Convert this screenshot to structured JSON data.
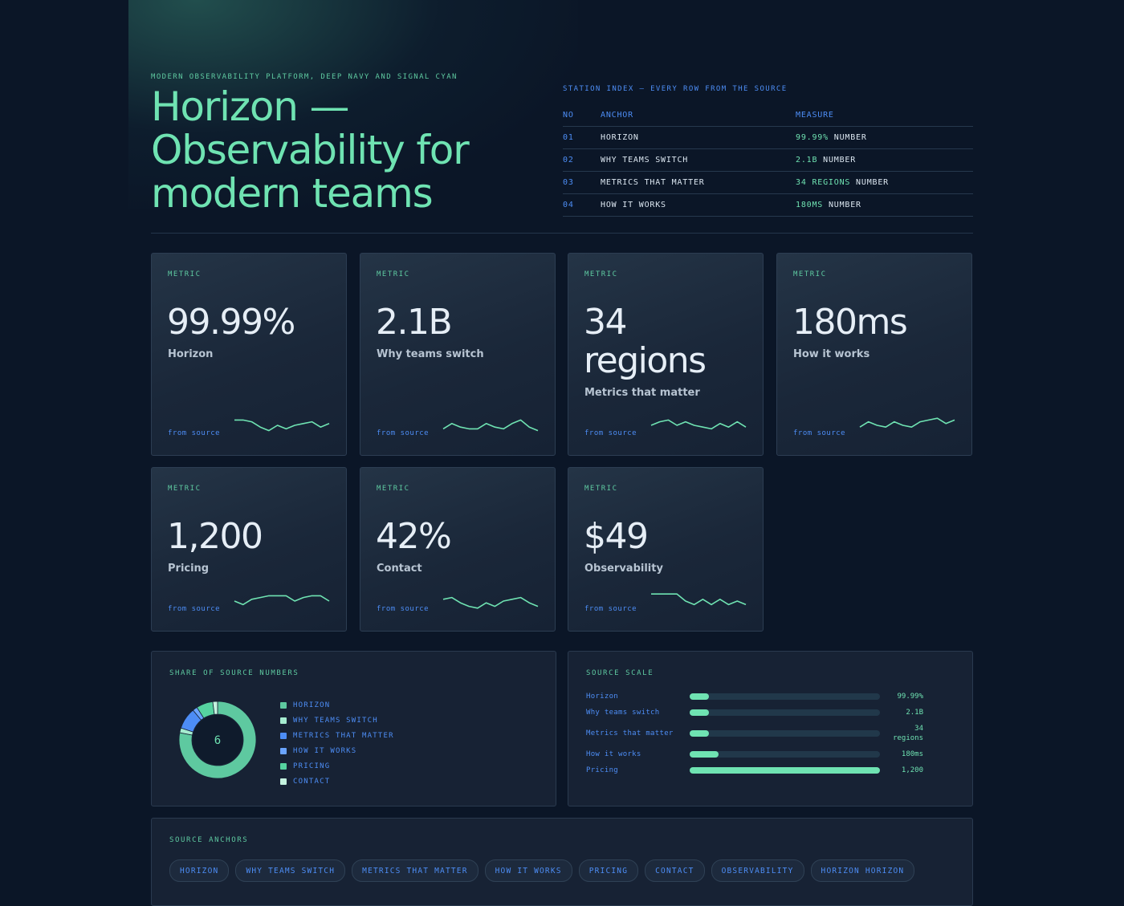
{
  "hero": {
    "eyebrow": "MODERN OBSERVABILITY PLATFORM, DEEP NAVY AND SIGNAL CYAN",
    "title": "Horizon — Observability for modern teams"
  },
  "station_index": {
    "caption": "STATION INDEX — EVERY ROW FROM THE SOURCE",
    "headers": {
      "no": "NO",
      "anchor": "ANCHOR",
      "measure": "MEASURE"
    },
    "rows": [
      {
        "no": "01",
        "anchor": "HORIZON",
        "value": "99.99%",
        "unit": "NUMBER"
      },
      {
        "no": "02",
        "anchor": "WHY TEAMS SWITCH",
        "value": "2.1B",
        "unit": "NUMBER"
      },
      {
        "no": "03",
        "anchor": "METRICS THAT MATTER",
        "value": "34 REGIONS",
        "unit": "NUMBER"
      },
      {
        "no": "04",
        "anchor": "HOW IT WORKS",
        "value": "180MS",
        "unit": "NUMBER"
      }
    ]
  },
  "metrics": [
    {
      "label": "METRIC",
      "value": "99.99%",
      "name": "Horizon",
      "source": "from source",
      "spark": [
        8,
        8,
        7,
        4,
        2,
        5,
        3,
        5,
        6,
        7,
        4,
        6
      ]
    },
    {
      "label": "METRIC",
      "value": "2.1B",
      "name": "Why teams switch",
      "source": "from source",
      "spark": [
        3,
        6,
        4,
        3,
        3,
        6,
        4,
        3,
        6,
        8,
        4,
        2
      ]
    },
    {
      "label": "METRIC",
      "value": "34 regions",
      "name": "Metrics that matter",
      "source": "from source",
      "spark": [
        5,
        7,
        8,
        5,
        7,
        5,
        4,
        3,
        6,
        4,
        7,
        4
      ]
    },
    {
      "label": "METRIC",
      "value": "180ms",
      "name": "How it works",
      "source": "from source",
      "spark": [
        4,
        7,
        5,
        4,
        7,
        5,
        4,
        7,
        8,
        9,
        6,
        8
      ]
    },
    {
      "label": "METRIC",
      "value": "1,200",
      "name": "Pricing",
      "source": "from source",
      "spark": [
        5,
        3,
        6,
        7,
        8,
        8,
        8,
        5,
        7,
        8,
        8,
        5
      ]
    },
    {
      "label": "METRIC",
      "value": "42%",
      "name": "Contact",
      "source": "from source",
      "spark": [
        6,
        7,
        4,
        2,
        1,
        4,
        2,
        5,
        6,
        7,
        4,
        2
      ]
    },
    {
      "label": "METRIC",
      "value": "$49",
      "name": "Observability",
      "source": "from source",
      "spark": [
        9,
        9,
        9,
        9,
        5,
        3,
        6,
        3,
        6,
        3,
        5,
        3
      ]
    }
  ],
  "share": {
    "title": "SHARE OF SOURCE NUMBERS",
    "center": "6",
    "legend": [
      {
        "label": "HORIZON",
        "color": "#5ec9a0"
      },
      {
        "label": "WHY TEAMS SWITCH",
        "color": "#a5ecd0"
      },
      {
        "label": "METRICS THAT MATTER",
        "color": "#4d8df5"
      },
      {
        "label": "HOW IT WORKS",
        "color": "#6aa4ff"
      },
      {
        "label": "PRICING",
        "color": "#56d3a0"
      },
      {
        "label": "CONTACT",
        "color": "#c4f3df"
      }
    ]
  },
  "chart_data": {
    "type": "pie",
    "title": "SHARE OF SOURCE NUMBERS",
    "center_label": "6",
    "categories": [
      "HORIZON",
      "WHY TEAMS SWITCH",
      "METRICS THAT MATTER",
      "HOW IT WORKS",
      "PRICING",
      "CONTACT"
    ],
    "values": [
      0.78,
      0.02,
      0.09,
      0.02,
      0.07,
      0.02
    ],
    "colors": [
      "#5ec9a0",
      "#a5ecd0",
      "#4d8df5",
      "#6aa4ff",
      "#56d3a0",
      "#c4f3df"
    ]
  },
  "scale": {
    "title": "SOURCE SCALE",
    "rows": [
      {
        "name": "Horizon",
        "value": "99.99%",
        "fraction": 0.1
      },
      {
        "name": "Why teams switch",
        "value": "2.1B",
        "fraction": 0.1
      },
      {
        "name": "Metrics that matter",
        "value": "34 regions",
        "fraction": 0.1
      },
      {
        "name": "How it works",
        "value": "180ms",
        "fraction": 0.15
      },
      {
        "name": "Pricing",
        "value": "1,200",
        "fraction": 1.0
      }
    ]
  },
  "anchors": {
    "title": "SOURCE ANCHORS",
    "chips": [
      "HORIZON",
      "WHY TEAMS SWITCH",
      "METRICS THAT MATTER",
      "HOW IT WORKS",
      "PRICING",
      "CONTACT",
      "OBSERVABILITY",
      "HORIZON HORIZON"
    ]
  },
  "colors": {
    "background": "#0b1627",
    "accent": "#6fe3b2",
    "accent_blue": "#4d8df5",
    "panel": "#172234"
  }
}
